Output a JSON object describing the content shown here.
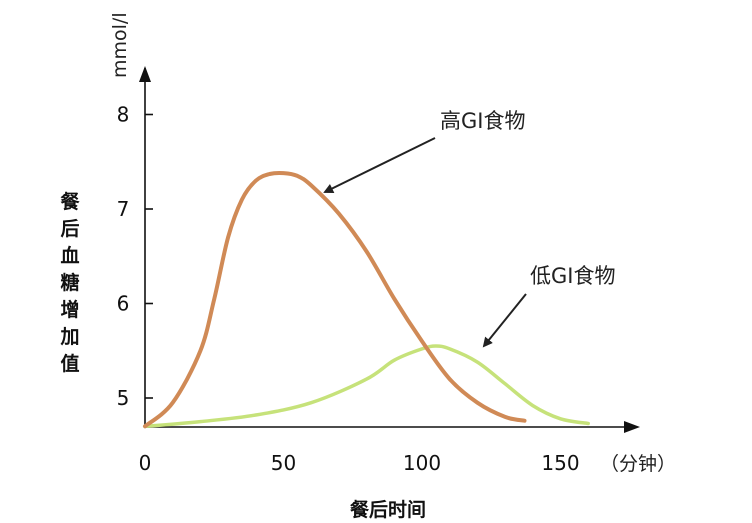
{
  "chart_data": {
    "type": "line",
    "xlabel": "餐后时间",
    "ylabel": "餐后血糖增加值",
    "x_unit": "（分钟）",
    "y_unit": "mmol/l",
    "xlim": [
      0,
      175
    ],
    "ylim": [
      4.7,
      8.4
    ],
    "x_ticks": [
      "0",
      "50",
      "100",
      "150"
    ],
    "y_ticks": [
      "5",
      "6",
      "7",
      "8"
    ],
    "grid": false,
    "series": [
      {
        "name": "高GI食物",
        "color": "#d08a56",
        "x": [
          0,
          10,
          20,
          25,
          30,
          35,
          40,
          45,
          50,
          55,
          60,
          70,
          80,
          90,
          100,
          110,
          120,
          130,
          137
        ],
        "y": [
          4.7,
          4.95,
          5.5,
          6.05,
          6.7,
          7.1,
          7.3,
          7.37,
          7.38,
          7.35,
          7.25,
          6.95,
          6.55,
          6.05,
          5.6,
          5.2,
          4.95,
          4.8,
          4.76
        ]
      },
      {
        "name": "低GI食物",
        "color": "#c6e27a",
        "x": [
          0,
          20,
          40,
          60,
          80,
          90,
          100,
          105,
          110,
          120,
          130,
          140,
          150,
          160
        ],
        "y": [
          4.7,
          4.75,
          4.82,
          4.95,
          5.2,
          5.4,
          5.52,
          5.55,
          5.52,
          5.38,
          5.15,
          4.92,
          4.78,
          4.73
        ]
      }
    ]
  }
}
